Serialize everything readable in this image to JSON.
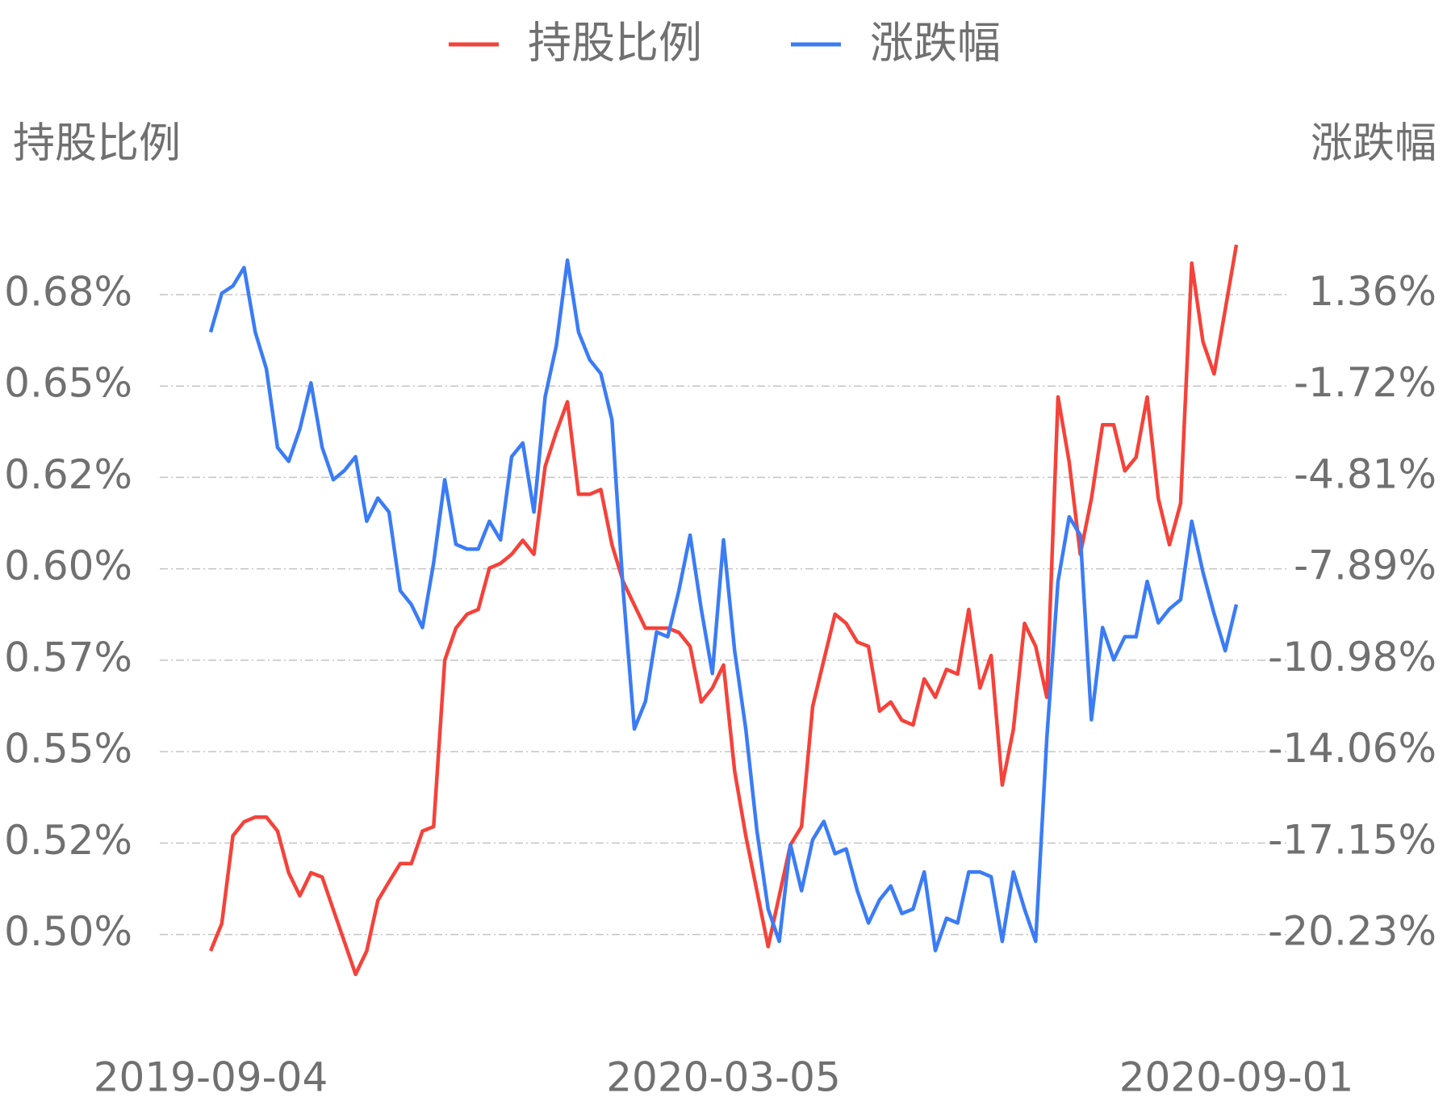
{
  "chart_data": {
    "type": "line",
    "y_label": "持股比例",
    "y2_label": "涨跌幅",
    "categories": [
      "2019-09-04",
      null,
      null,
      null,
      null,
      null,
      null,
      null,
      null,
      null,
      null,
      null,
      null,
      null,
      null,
      null,
      null,
      null,
      null,
      null,
      null,
      null,
      null,
      null,
      null,
      null,
      null,
      null,
      null,
      null,
      null,
      null,
      null,
      null,
      null,
      null,
      null,
      null,
      null,
      null,
      null,
      null,
      null,
      null,
      null,
      null,
      "2020-03-05",
      null,
      null,
      null,
      null,
      null,
      null,
      null,
      null,
      null,
      null,
      null,
      null,
      null,
      null,
      null,
      null,
      null,
      null,
      null,
      null,
      null,
      null,
      null,
      null,
      null,
      null,
      null,
      null,
      null,
      null,
      null,
      null,
      null,
      null,
      null,
      null,
      null,
      null,
      null,
      null,
      null,
      null,
      null,
      null,
      null,
      "2020-09-01"
    ],
    "series": [
      {
        "name": "持股比例",
        "color": "#f5423a",
        "axis": "y",
        "values": [
          0.4955,
          0.503,
          0.527,
          0.5308,
          0.5321,
          0.5321,
          0.5283,
          0.5169,
          0.5106,
          0.5169,
          0.5157,
          0.5068,
          0.498,
          0.4891,
          0.4955,
          0.5093,
          0.5144,
          0.5194,
          0.5194,
          0.5283,
          0.5295,
          0.575,
          0.5838,
          0.5876,
          0.5889,
          0.6002,
          0.6015,
          0.604,
          0.6078,
          0.604,
          0.628,
          0.6374,
          0.6457,
          0.6204,
          0.6204,
          0.6217,
          0.6066,
          0.5965,
          0.5901,
          0.5838,
          0.5838,
          0.5838,
          0.5826,
          0.5788,
          0.5636,
          0.5674,
          0.5737,
          0.5447,
          0.527,
          0.5119,
          0.4967,
          0.5106,
          0.5245,
          0.5295,
          0.5624,
          0.575,
          0.5876,
          0.5851,
          0.58,
          0.5788,
          0.5611,
          0.5636,
          0.5586,
          0.5573,
          0.5699,
          0.5649,
          0.5725,
          0.5712,
          0.5889,
          0.5674,
          0.5763,
          0.5409,
          0.5561,
          0.5851,
          0.5788,
          0.5649,
          0.647,
          0.6293,
          0.604,
          0.6192,
          0.6394,
          0.6394,
          0.6268,
          0.6305,
          0.647,
          0.6192,
          0.6066,
          0.6179,
          0.6836,
          0.6621,
          0.6533,
          0.6709,
          0.6886
        ]
      },
      {
        "name": "涨跌幅",
        "color": "#3b7cf6",
        "axis": "y2",
        "values": [
          0.08,
          1.39,
          1.64,
          2.26,
          0.08,
          -1.16,
          -3.81,
          -4.28,
          -3.19,
          -1.63,
          -3.81,
          -4.9,
          -4.59,
          -4.12,
          -6.3,
          -5.52,
          -5.99,
          -8.64,
          -9.11,
          -9.89,
          -7.71,
          -4.9,
          -7.08,
          -7.24,
          -7.24,
          -6.3,
          -6.93,
          -4.12,
          -3.66,
          -5.99,
          -2.1,
          -0.38,
          2.51,
          0.08,
          -0.85,
          -1.32,
          -2.88,
          -8.64,
          -13.31,
          -12.38,
          -10.04,
          -10.2,
          -8.64,
          -6.77,
          -9.26,
          -11.44,
          -6.93,
          -10.67,
          -13.31,
          -16.74,
          -19.39,
          -20.48,
          -17.21,
          -18.77,
          -17.05,
          -16.43,
          -17.52,
          -17.36,
          -18.77,
          -19.86,
          -19.08,
          -18.61,
          -19.54,
          -19.39,
          -18.14,
          -20.79,
          -19.7,
          -19.86,
          -18.14,
          -18.14,
          -18.3,
          -20.48,
          -18.14,
          -19.39,
          -20.48,
          -13.63,
          -8.33,
          -6.15,
          -6.77,
          -13.0,
          -9.89,
          -10.98,
          -10.2,
          -10.2,
          -8.33,
          -9.73,
          -9.26,
          -8.95,
          -6.3,
          -8.02,
          -9.42,
          -10.67,
          -9.11
        ]
      }
    ],
    "ylim": [
      0.488,
      0.69
    ],
    "yticks": [
      {
        "value": 0.5,
        "label": "0.50%"
      },
      {
        "value": 0.525,
        "label": "0.52%"
      },
      {
        "value": 0.55,
        "label": "0.55%"
      },
      {
        "value": 0.575,
        "label": "0.57%"
      },
      {
        "value": 0.6,
        "label": "0.60%"
      },
      {
        "value": 0.625,
        "label": "0.62%"
      },
      {
        "value": 0.65,
        "label": "0.65%"
      },
      {
        "value": 0.675,
        "label": "0.68%"
      }
    ],
    "y2lim": [
      -21.73,
      3.2
    ],
    "y2ticks": [
      {
        "value": -20.23,
        "label": "-20.23%"
      },
      {
        "value": -17.15,
        "label": "-17.15%"
      },
      {
        "value": -14.06,
        "label": "-14.06%"
      },
      {
        "value": -10.98,
        "label": "-10.98%"
      },
      {
        "value": -7.89,
        "label": "-7.89%"
      },
      {
        "value": -4.81,
        "label": "-4.81%"
      },
      {
        "value": -1.72,
        "label": "-1.72%"
      },
      {
        "value": 1.36,
        "label": "1.36%"
      }
    ],
    "grid": true
  }
}
